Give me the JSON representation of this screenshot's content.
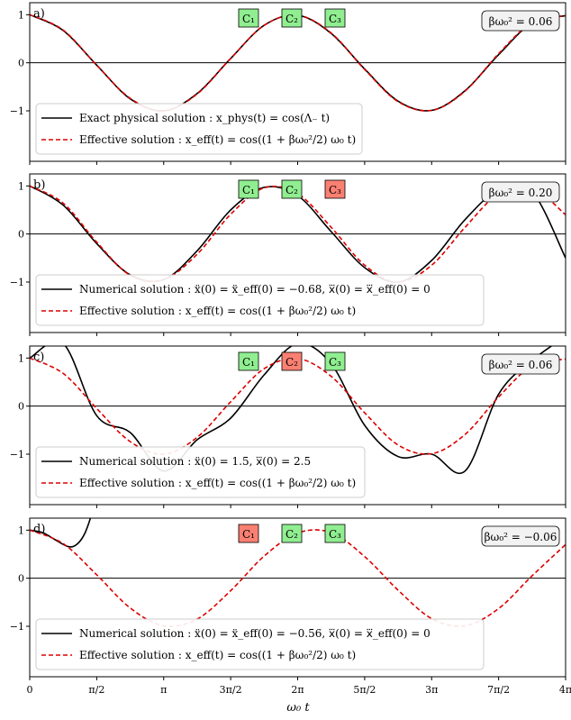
{
  "figure": {
    "xlabel": "ω₀ t",
    "xlim": [
      0,
      12.566
    ],
    "ylim": [
      -2.05,
      1.25
    ],
    "x_tick_labels": [
      "0",
      "π/2",
      "π",
      "3π/2",
      "2π",
      "5π/2",
      "3π",
      "7π/2",
      "4π"
    ],
    "y_tick_labels": [
      "1",
      "0",
      "−1"
    ],
    "colors": {
      "exact": "#000000",
      "effective": "#dd0000",
      "criterion_ok": "#90ee90",
      "criterion_fail": "#fa8072"
    }
  },
  "chart_data": [
    {
      "type": "line",
      "panel": "a)",
      "parameter_label": "βω₀² = 0.06",
      "criteria": [
        {
          "label": "C₁",
          "status": "ok"
        },
        {
          "label": "C₂",
          "status": "ok"
        },
        {
          "label": "C₃",
          "status": "ok"
        }
      ],
      "series": [
        {
          "name": "Exact physical solution : x_phys(t) = cos(Λ₋ t)",
          "style": "solid",
          "color": "#000000",
          "x": [
            0,
            0.785,
            1.571,
            2.356,
            3.142,
            3.927,
            4.712,
            5.498,
            6.283,
            7.069,
            7.854,
            8.639,
            9.425,
            10.21,
            10.996,
            11.781,
            12.566
          ],
          "y": [
            1.0,
            0.67,
            -0.05,
            -0.75,
            -1.0,
            -0.64,
            0.09,
            0.78,
            0.99,
            0.61,
            -0.13,
            -0.8,
            -0.99,
            -0.58,
            0.17,
            0.83,
            0.98
          ]
        },
        {
          "name": "Effective solution : x_eff(t) = cos((1 + βω₀²/2) ω₀ t)",
          "style": "dashed",
          "color": "#dd0000",
          "x": [
            0,
            0.785,
            1.571,
            2.356,
            3.142,
            3.927,
            4.712,
            5.498,
            6.283,
            7.069,
            7.854,
            8.639,
            9.425,
            10.21,
            10.996,
            11.781,
            12.566
          ],
          "y": [
            1.0,
            0.68,
            -0.05,
            -0.74,
            -1.0,
            -0.65,
            0.09,
            0.78,
            0.99,
            0.62,
            -0.14,
            -0.81,
            -0.99,
            -0.59,
            0.19,
            0.84,
            0.98
          ]
        }
      ]
    },
    {
      "type": "line",
      "panel": "b)",
      "parameter_label": "βω₀² = 0.20",
      "criteria": [
        {
          "label": "C₁",
          "status": "ok"
        },
        {
          "label": "C₂",
          "status": "ok"
        },
        {
          "label": "C₃",
          "status": "fail"
        }
      ],
      "series": [
        {
          "name": "Numerical solution : ẍ(0) = ẍ_eff(0) = −0.68,  x⃛(0) = x⃛_eff(0) = 0",
          "style": "solid",
          "color": "#000000",
          "x": [
            0,
            0.785,
            1.571,
            2.356,
            3.142,
            3.927,
            4.712,
            5.498,
            6.283,
            7.069,
            7.854,
            8.639,
            9.425,
            10.21,
            10.996,
            11.781,
            12.566
          ],
          "y": [
            1.0,
            0.6,
            -0.2,
            -0.85,
            -0.95,
            -0.35,
            0.5,
            0.97,
            0.8,
            0.05,
            -0.7,
            -1.0,
            -0.55,
            0.3,
            0.92,
            0.88,
            -0.5
          ]
        },
        {
          "name": "Effective solution : x_eff(t) = cos((1 + βω₀²/2) ω₀ t)",
          "style": "dashed",
          "color": "#dd0000",
          "x": [
            0,
            0.785,
            1.571,
            2.356,
            3.142,
            3.927,
            4.712,
            5.498,
            6.283,
            7.069,
            7.854,
            8.639,
            9.425,
            10.21,
            10.996,
            11.781,
            12.566
          ],
          "y": [
            1.0,
            0.64,
            -0.17,
            -0.86,
            -0.95,
            -0.42,
            0.41,
            0.96,
            0.84,
            0.14,
            -0.65,
            -1.0,
            -0.65,
            0.14,
            0.84,
            0.96,
            0.4
          ]
        }
      ]
    },
    {
      "type": "line",
      "panel": "c)",
      "parameter_label": "βω₀² = 0.06",
      "criteria": [
        {
          "label": "C₁",
          "status": "ok"
        },
        {
          "label": "C₂",
          "status": "fail"
        },
        {
          "label": "C₃",
          "status": "ok"
        }
      ],
      "series": [
        {
          "name": "Numerical solution : ẍ(0) = 1.5,  x⃛(0) = 2.5",
          "style": "solid",
          "color": "#000000",
          "x": [
            0,
            0.785,
            1.571,
            2.356,
            3.142,
            3.927,
            4.712,
            5.498,
            6.283,
            7.069,
            7.854,
            8.639,
            9.425,
            10.21,
            10.996,
            11.781,
            12.566
          ],
          "y": [
            1.0,
            1.3,
            -0.2,
            -0.55,
            -1.35,
            -0.7,
            -0.25,
            0.65,
            1.3,
            0.88,
            -0.4,
            -1.05,
            -1.0,
            -1.35,
            0.25,
            0.95,
            1.45
          ]
        },
        {
          "name": "Effective solution : x_eff(t) = cos((1 + βω₀²/2) ω₀ t)",
          "style": "dashed",
          "color": "#dd0000",
          "x": [
            0,
            0.785,
            1.571,
            2.356,
            3.142,
            3.927,
            4.712,
            5.498,
            6.283,
            7.069,
            7.854,
            8.639,
            9.425,
            10.21,
            10.996,
            11.781,
            12.566
          ],
          "y": [
            1.0,
            0.68,
            -0.05,
            -0.74,
            -1.0,
            -0.65,
            0.09,
            0.78,
            0.99,
            0.62,
            -0.14,
            -0.81,
            -0.99,
            -0.59,
            0.19,
            0.84,
            0.98
          ]
        }
      ]
    },
    {
      "type": "line",
      "panel": "d)",
      "parameter_label": "βω₀² = −0.06",
      "criteria": [
        {
          "label": "C₁",
          "status": "fail"
        },
        {
          "label": "C₂",
          "status": "ok"
        },
        {
          "label": "C₃",
          "status": "ok"
        }
      ],
      "series": [
        {
          "name": "Numerical solution : ẍ(0) = ẍ_eff(0) = −0.56,  x⃛(0) = x⃛_eff(0) = 0",
          "style": "solid",
          "color": "#000000",
          "x": [
            0,
            0.3,
            0.6,
            0.9,
            1.1,
            1.3,
            1.5,
            1.6
          ],
          "y": [
            1.0,
            0.95,
            0.8,
            0.66,
            0.7,
            0.95,
            1.5,
            2.0
          ]
        },
        {
          "name": "Effective solution : x_eff(t) = cos((1 + βω₀²/2) ω₀ t)",
          "style": "dashed",
          "color": "#dd0000",
          "x": [
            0,
            0.785,
            1.571,
            2.356,
            3.142,
            3.927,
            4.712,
            5.498,
            6.283,
            7.069,
            7.854,
            8.639,
            9.425,
            10.21,
            10.996,
            11.781,
            12.566
          ],
          "y": [
            1.0,
            0.72,
            0.07,
            -0.62,
            -0.99,
            -0.85,
            -0.26,
            0.46,
            0.94,
            0.95,
            0.45,
            -0.25,
            -0.84,
            -0.99,
            -0.63,
            0.05,
            0.7
          ]
        }
      ]
    }
  ]
}
